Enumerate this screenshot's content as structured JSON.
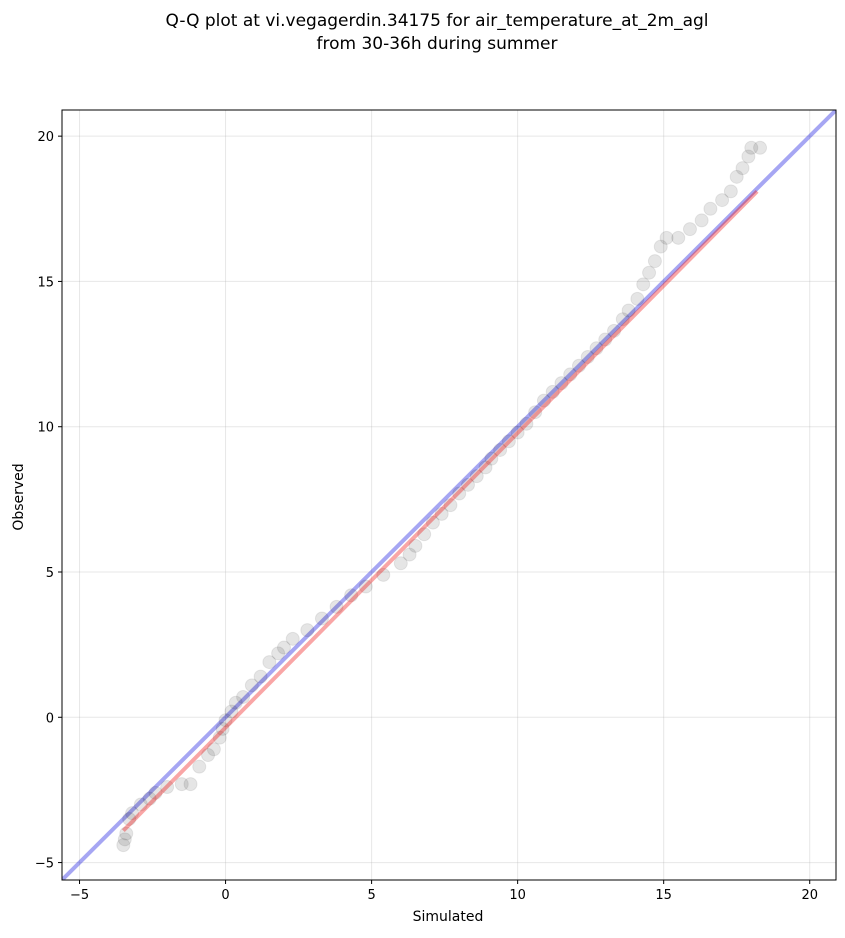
{
  "chart_data": {
    "type": "scatter",
    "title_line1": "Q-Q plot at vi.vegagerdin.34175 for air_temperature_at_2m_agl",
    "title_line2": "from 30-36h during summer",
    "xlabel": "Simulated",
    "ylabel": "Observed",
    "xlim": [
      -5.6,
      20.9
    ],
    "ylim": [
      -5.6,
      20.9
    ],
    "xticks": [
      -5,
      0,
      5,
      10,
      15,
      20
    ],
    "yticks": [
      -5,
      0,
      5,
      10,
      15,
      20
    ],
    "grid": true,
    "reference_line": {
      "kind": "y = x",
      "color": "#0000dd"
    },
    "fit_line": {
      "from": [
        -3.5,
        -3.9
      ],
      "to": [
        18.2,
        18.1
      ],
      "color": "#ee0000"
    },
    "quantile_points": [
      [
        -3.5,
        -4.4
      ],
      [
        -3.45,
        -4.2
      ],
      [
        -3.4,
        -4.0
      ],
      [
        -3.3,
        -3.5
      ],
      [
        -3.2,
        -3.3
      ],
      [
        -2.9,
        -3.0
      ],
      [
        -2.6,
        -2.8
      ],
      [
        -2.4,
        -2.6
      ],
      [
        -2.0,
        -2.4
      ],
      [
        -1.5,
        -2.3
      ],
      [
        -1.2,
        -2.3
      ],
      [
        -0.9,
        -1.7
      ],
      [
        -0.6,
        -1.3
      ],
      [
        -0.4,
        -1.1
      ],
      [
        -0.2,
        -0.7
      ],
      [
        -0.1,
        -0.4
      ],
      [
        0.0,
        -0.1
      ],
      [
        0.2,
        0.2
      ],
      [
        0.35,
        0.5
      ],
      [
        0.6,
        0.7
      ],
      [
        0.9,
        1.1
      ],
      [
        1.2,
        1.4
      ],
      [
        1.5,
        1.9
      ],
      [
        1.8,
        2.2
      ],
      [
        2.0,
        2.4
      ],
      [
        2.3,
        2.7
      ],
      [
        2.8,
        3.0
      ],
      [
        3.3,
        3.4
      ],
      [
        3.8,
        3.8
      ],
      [
        4.3,
        4.2
      ],
      [
        4.8,
        4.5
      ],
      [
        5.4,
        4.9
      ],
      [
        6.0,
        5.3
      ],
      [
        6.3,
        5.6
      ],
      [
        6.5,
        5.9
      ],
      [
        6.8,
        6.3
      ],
      [
        7.1,
        6.7
      ],
      [
        7.4,
        7.0
      ],
      [
        7.7,
        7.3
      ],
      [
        8.0,
        7.7
      ],
      [
        8.3,
        8.0
      ],
      [
        8.6,
        8.3
      ],
      [
        8.9,
        8.6
      ],
      [
        9.1,
        8.9
      ],
      [
        9.4,
        9.2
      ],
      [
        9.7,
        9.5
      ],
      [
        10.0,
        9.8
      ],
      [
        10.3,
        10.1
      ],
      [
        10.6,
        10.5
      ],
      [
        10.9,
        10.9
      ],
      [
        11.2,
        11.2
      ],
      [
        11.5,
        11.5
      ],
      [
        11.8,
        11.8
      ],
      [
        12.1,
        12.1
      ],
      [
        12.4,
        12.4
      ],
      [
        12.7,
        12.7
      ],
      [
        13.0,
        13.0
      ],
      [
        13.3,
        13.3
      ],
      [
        13.6,
        13.7
      ],
      [
        13.8,
        14.0
      ],
      [
        14.1,
        14.4
      ],
      [
        14.3,
        14.9
      ],
      [
        14.5,
        15.3
      ],
      [
        14.7,
        15.7
      ],
      [
        14.9,
        16.2
      ],
      [
        15.1,
        16.5
      ],
      [
        15.5,
        16.5
      ],
      [
        15.9,
        16.8
      ],
      [
        16.3,
        17.1
      ],
      [
        16.6,
        17.5
      ],
      [
        17.0,
        17.8
      ],
      [
        17.3,
        18.1
      ],
      [
        17.5,
        18.6
      ],
      [
        17.7,
        18.9
      ],
      [
        17.9,
        19.3
      ],
      [
        18.0,
        19.6
      ],
      [
        18.3,
        19.6
      ]
    ]
  }
}
